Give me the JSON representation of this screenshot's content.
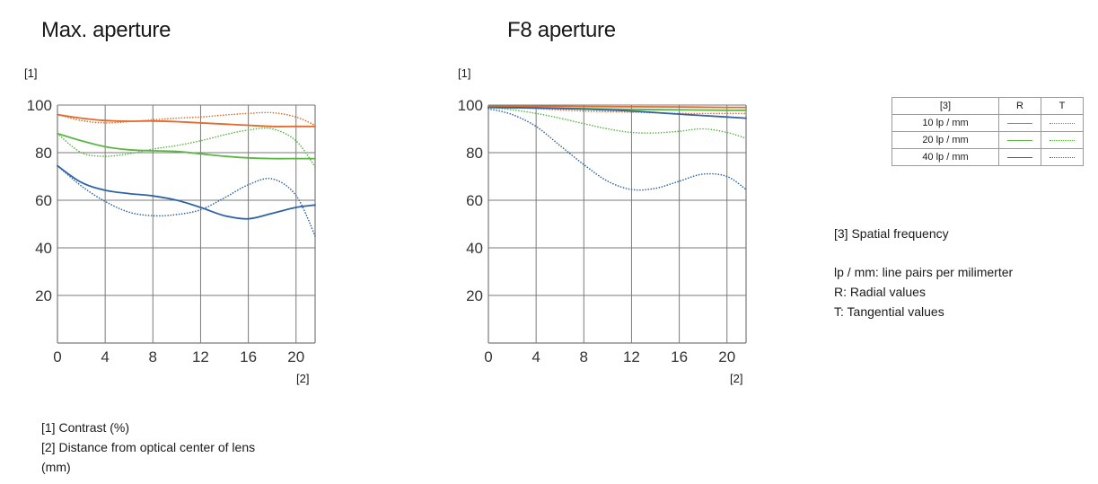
{
  "colors": {
    "freq10": "#e26a2c",
    "freq20": "#5cb646",
    "freq40": "#2f63a8",
    "grid": "#7a7a7a"
  },
  "charts_text": {
    "max_title": "Max. aperture",
    "f8_title": "F8 aperture",
    "ytag": "[1]",
    "xtag": "[2]"
  },
  "legend": {
    "header": [
      "[3]",
      "R",
      "T"
    ],
    "rows": [
      "10 lp / mm",
      "20 lp / mm",
      "40 lp / mm"
    ]
  },
  "notes": {
    "spatial": "[3] Spatial frequency",
    "lp": "lp / mm: line pairs per milimerter",
    "r": "R: Radial values",
    "t": "T: Tangential values",
    "contrast": "[1] Contrast (%)",
    "distance_1": "[2] Distance from optical center of lens",
    "distance_2": "(mm)"
  },
  "chart_data": [
    {
      "type": "line",
      "title": "Max. aperture",
      "xlabel": "[2]",
      "ylabel": "[1]",
      "xlim": [
        0,
        21.6
      ],
      "ylim": [
        0,
        100
      ],
      "xticks": [
        0,
        4,
        8,
        12,
        16,
        20
      ],
      "yticks": [
        20,
        40,
        60,
        80,
        100
      ],
      "grid": true,
      "series": [
        {
          "name": "10 lp / mm R",
          "freq": "10",
          "kind": "R",
          "x": [
            0,
            2,
            4,
            6,
            8,
            10,
            12,
            14,
            16,
            18,
            20,
            21.6
          ],
          "y": [
            96,
            94.5,
            93.5,
            93.2,
            93.3,
            93,
            92.5,
            92,
            91.5,
            91,
            91,
            91
          ]
        },
        {
          "name": "10 lp / mm T",
          "freq": "10",
          "kind": "T",
          "x": [
            0,
            2,
            4,
            6,
            8,
            10,
            12,
            14,
            16,
            18,
            20,
            21.6
          ],
          "y": [
            96,
            93.5,
            92.5,
            93,
            93.8,
            94.5,
            95,
            95.8,
            96.5,
            96.8,
            95,
            91.5
          ]
        },
        {
          "name": "20 lp / mm R",
          "freq": "20",
          "kind": "R",
          "x": [
            0,
            2,
            4,
            6,
            8,
            10,
            12,
            14,
            16,
            18,
            20,
            21.6
          ],
          "y": [
            88,
            85,
            82.5,
            81.2,
            80.8,
            80.5,
            79.5,
            78.5,
            77.8,
            77.5,
            77.5,
            77.5
          ]
        },
        {
          "name": "20 lp / mm T",
          "freq": "20",
          "kind": "T",
          "x": [
            0,
            2,
            4,
            6,
            8,
            10,
            12,
            14,
            16,
            18,
            20,
            21.6
          ],
          "y": [
            88,
            80,
            78.5,
            79.5,
            81.5,
            83,
            85,
            87.5,
            89.5,
            90,
            85,
            74
          ]
        },
        {
          "name": "40 lp / mm R",
          "freq": "40",
          "kind": "R",
          "x": [
            0,
            2,
            4,
            6,
            8,
            10,
            12,
            14,
            16,
            18,
            20,
            21.6
          ],
          "y": [
            74.5,
            67.5,
            64.2,
            62.8,
            61.8,
            60,
            57,
            53.5,
            52.2,
            54.5,
            57,
            58
          ]
        },
        {
          "name": "40 lp / mm T",
          "freq": "40",
          "kind": "T",
          "x": [
            0,
            2,
            4,
            6,
            8,
            10,
            12,
            14,
            16,
            18,
            20,
            21.6
          ],
          "y": [
            74.5,
            66,
            59.5,
            55,
            53.5,
            54,
            56,
            61,
            66.5,
            69,
            62,
            45
          ]
        }
      ]
    },
    {
      "type": "line",
      "title": "F8 aperture",
      "xlabel": "[2]",
      "ylabel": "[1]",
      "xlim": [
        0,
        21.6
      ],
      "ylim": [
        0,
        100
      ],
      "xticks": [
        0,
        4,
        8,
        12,
        16,
        20
      ],
      "yticks": [
        20,
        40,
        60,
        80,
        100
      ],
      "grid": true,
      "series": [
        {
          "name": "10 lp / mm R",
          "freq": "10",
          "kind": "R",
          "x": [
            0,
            4,
            8,
            12,
            16,
            20,
            21.6
          ],
          "y": [
            99.5,
            99.5,
            99.4,
            99.3,
            99.2,
            99,
            99
          ]
        },
        {
          "name": "10 lp / mm T",
          "freq": "10",
          "kind": "T",
          "x": [
            0,
            4,
            8,
            12,
            16,
            20,
            21.6
          ],
          "y": [
            99.5,
            98.5,
            97.5,
            97,
            96.5,
            96.5,
            96.5
          ]
        },
        {
          "name": "20 lp / mm R",
          "freq": "20",
          "kind": "R",
          "x": [
            0,
            4,
            8,
            12,
            16,
            20,
            21.6
          ],
          "y": [
            99,
            98.8,
            98.5,
            98.2,
            98,
            97.8,
            97.8
          ]
        },
        {
          "name": "20 lp / mm T",
          "freq": "20",
          "kind": "T",
          "x": [
            0,
            2,
            4,
            6,
            8,
            10,
            12,
            14,
            16,
            18,
            20,
            21.6
          ],
          "y": [
            99,
            98,
            96.5,
            94.5,
            92.2,
            90,
            88.5,
            88.3,
            89,
            90,
            88.5,
            86
          ]
        },
        {
          "name": "40 lp / mm R",
          "freq": "40",
          "kind": "R",
          "x": [
            0,
            4,
            8,
            12,
            16,
            20,
            21.6
          ],
          "y": [
            99,
            98.8,
            98.3,
            97.5,
            96.2,
            95,
            94.5
          ]
        },
        {
          "name": "40 lp / mm T",
          "freq": "40",
          "kind": "T",
          "x": [
            0,
            2,
            4,
            6,
            8,
            10,
            12,
            14,
            16,
            18,
            20,
            21.6
          ],
          "y": [
            98.5,
            96,
            91,
            83,
            75,
            68,
            64.5,
            65,
            68,
            71,
            70,
            64.5
          ]
        }
      ]
    }
  ]
}
